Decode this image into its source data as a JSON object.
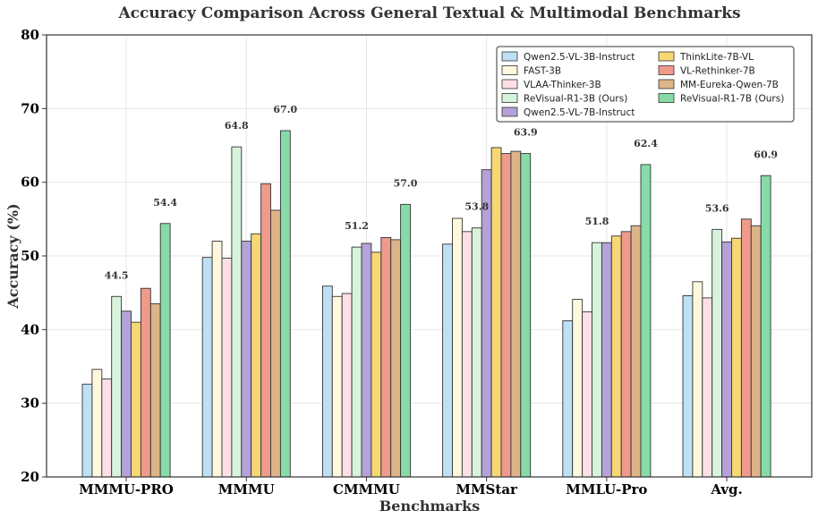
{
  "chart_data": {
    "type": "bar",
    "title": "Accuracy Comparison Across General Textual & Multimodal Benchmarks",
    "xlabel": "Benchmarks",
    "ylabel": "Accuracy (%)",
    "ylim": [
      20,
      80
    ],
    "yticks": [
      "20",
      "30",
      "40",
      "50",
      "60",
      "70",
      "80"
    ],
    "grid": true,
    "legend_position": "top-right",
    "categories": [
      "MMMU-PRO",
      "MMMU",
      "CMMMU",
      "MMStar",
      "MMLU-Pro",
      "Avg."
    ],
    "series": [
      {
        "name": "Qwen2.5-VL-3B-Instruct",
        "color": "#bde0f5",
        "values": [
          32.6,
          49.8,
          45.9,
          51.6,
          41.2,
          44.6
        ]
      },
      {
        "name": "FAST-3B",
        "color": "#fff8dc",
        "values": [
          34.6,
          52.0,
          44.5,
          55.1,
          44.1,
          46.5
        ]
      },
      {
        "name": "VLAA-Thinker-3B",
        "color": "#fce0e6",
        "values": [
          33.3,
          49.7,
          44.9,
          53.3,
          42.4,
          44.3
        ]
      },
      {
        "name": "ReVisual-R1-3B (Ours)",
        "color": "#d8f3dc",
        "values": [
          44.5,
          64.8,
          51.2,
          53.8,
          51.8,
          53.6
        ]
      },
      {
        "name": "Qwen2.5-VL-7B-Instruct",
        "color": "#b4a2d8",
        "values": [
          42.5,
          52.0,
          51.7,
          61.7,
          51.8,
          51.9
        ]
      },
      {
        "name": "ThinkLite-7B-VL",
        "color": "#f7d774",
        "values": [
          41.0,
          53.0,
          50.5,
          64.7,
          52.7,
          52.4
        ]
      },
      {
        "name": "VL-Rethinker-7B",
        "color": "#ef9a8a",
        "values": [
          45.6,
          59.8,
          52.5,
          63.9,
          53.3,
          55.0
        ]
      },
      {
        "name": "MM-Eureka-Qwen-7B",
        "color": "#dcb489",
        "values": [
          43.5,
          56.2,
          52.2,
          64.2,
          54.1,
          54.1
        ]
      },
      {
        "name": "ReVisual-R1-7B (Ours)",
        "color": "#86dba6",
        "values": [
          54.4,
          67.0,
          57.0,
          63.9,
          62.4,
          60.9
        ]
      }
    ],
    "annotations": [
      {
        "category": "MMMU-PRO",
        "series": "ReVisual-R1-3B (Ours)",
        "text": "44.5"
      },
      {
        "category": "MMMU-PRO",
        "series": "ReVisual-R1-7B (Ours)",
        "text": "54.4"
      },
      {
        "category": "MMMU",
        "series": "ReVisual-R1-3B (Ours)",
        "text": "64.8"
      },
      {
        "category": "MMMU",
        "series": "ReVisual-R1-7B (Ours)",
        "text": "67.0"
      },
      {
        "category": "CMMMU",
        "series": "ReVisual-R1-3B (Ours)",
        "text": "51.2"
      },
      {
        "category": "CMMMU",
        "series": "ReVisual-R1-7B (Ours)",
        "text": "57.0"
      },
      {
        "category": "MMStar",
        "series": "ReVisual-R1-3B (Ours)",
        "text": "53.8"
      },
      {
        "category": "MMStar",
        "series": "ReVisual-R1-7B (Ours)",
        "text": "63.9"
      },
      {
        "category": "MMLU-Pro",
        "series": "ReVisual-R1-3B (Ours)",
        "text": "51.8"
      },
      {
        "category": "MMLU-Pro",
        "series": "ReVisual-R1-7B (Ours)",
        "text": "62.4"
      },
      {
        "category": "Avg.",
        "series": "ReVisual-R1-3B (Ours)",
        "text": "53.6"
      },
      {
        "category": "Avg.",
        "series": "ReVisual-R1-7B (Ours)",
        "text": "60.9"
      }
    ]
  }
}
